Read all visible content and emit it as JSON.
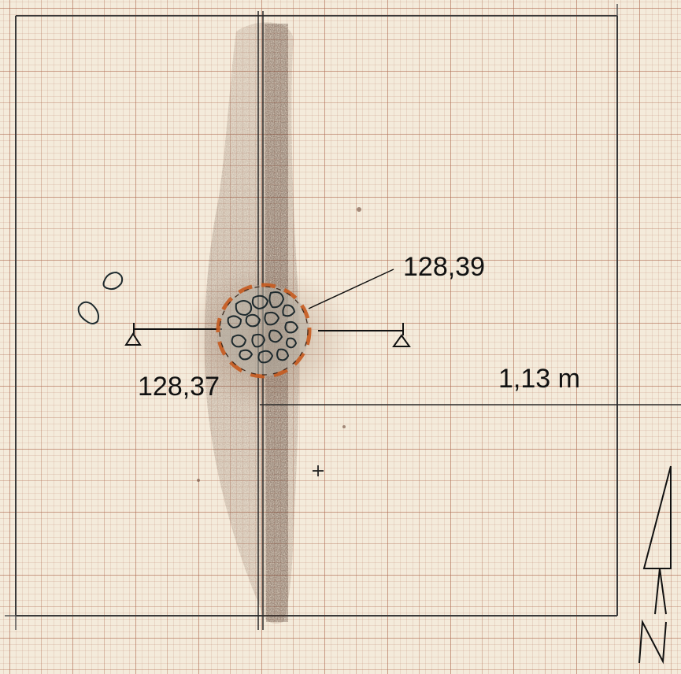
{
  "labels": {
    "elevation_top": "128,39",
    "elevation_left": "128,37",
    "dimension": "1,13 m"
  },
  "north_arrow": {
    "letter": "N"
  },
  "colors": {
    "paper": "#f4ebdb",
    "grid": "#b06e55",
    "pencil": "#222222",
    "stain": "#5a3a2c",
    "orange_marks": "#c65a1e"
  },
  "icons": [
    "benchmark-triangle-icon",
    "north-arrow-icon"
  ]
}
